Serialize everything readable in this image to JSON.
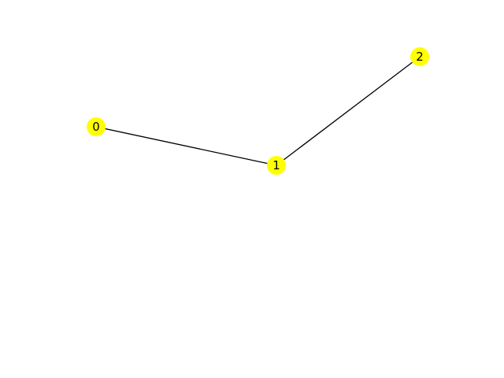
{
  "graph": {
    "node_color": "#ffff00",
    "edge_color": "#000000",
    "label_color": "#000000",
    "nodes": [
      {
        "id": "node0",
        "label": "0"
      },
      {
        "id": "node1",
        "label": "1"
      },
      {
        "id": "node2",
        "label": "2"
      }
    ],
    "edges": [
      {
        "source": "node0",
        "target": "node1"
      },
      {
        "source": "node1",
        "target": "node2"
      }
    ]
  }
}
